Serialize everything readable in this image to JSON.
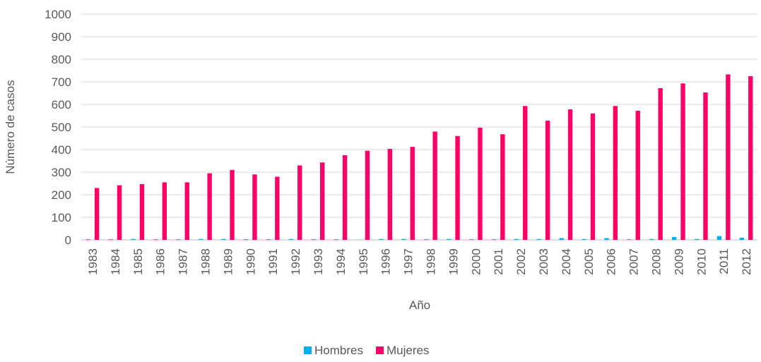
{
  "chart_data": {
    "type": "bar",
    "xlabel": "Año",
    "ylabel": "Número de casos",
    "categories": [
      "1983",
      "1984",
      "1985",
      "1986",
      "1987",
      "1988",
      "1989",
      "1990",
      "1991",
      "1992",
      "1993",
      "1994",
      "1995",
      "1996",
      "1997",
      "1998",
      "1999",
      "2000",
      "2001",
      "2002",
      "2003",
      "2004",
      "2005",
      "2006",
      "2007",
      "2008",
      "2009",
      "2010",
      "2011",
      "2012"
    ],
    "series": [
      {
        "name": "Hombres",
        "color": "#00b0f0",
        "values": [
          3,
          3,
          4,
          3,
          3,
          4,
          4,
          3,
          3,
          4,
          3,
          3,
          1,
          4,
          4,
          3,
          4,
          3,
          3,
          4,
          4,
          8,
          4,
          8,
          3,
          4,
          13,
          4,
          17,
          10
        ]
      },
      {
        "name": "Mujeres",
        "color": "#ff0066",
        "values": [
          230,
          242,
          247,
          255,
          255,
          295,
          310,
          290,
          280,
          330,
          343,
          375,
          395,
          403,
          412,
          480,
          460,
          497,
          468,
          593,
          528,
          578,
          560,
          593,
          572,
          672,
          693,
          653,
          733,
          725
        ]
      }
    ],
    "ylim": [
      0,
      1000
    ],
    "yticks": [
      0,
      100,
      200,
      300,
      400,
      500,
      600,
      700,
      800,
      900,
      1000
    ],
    "grid": true,
    "legend": "bottom"
  }
}
